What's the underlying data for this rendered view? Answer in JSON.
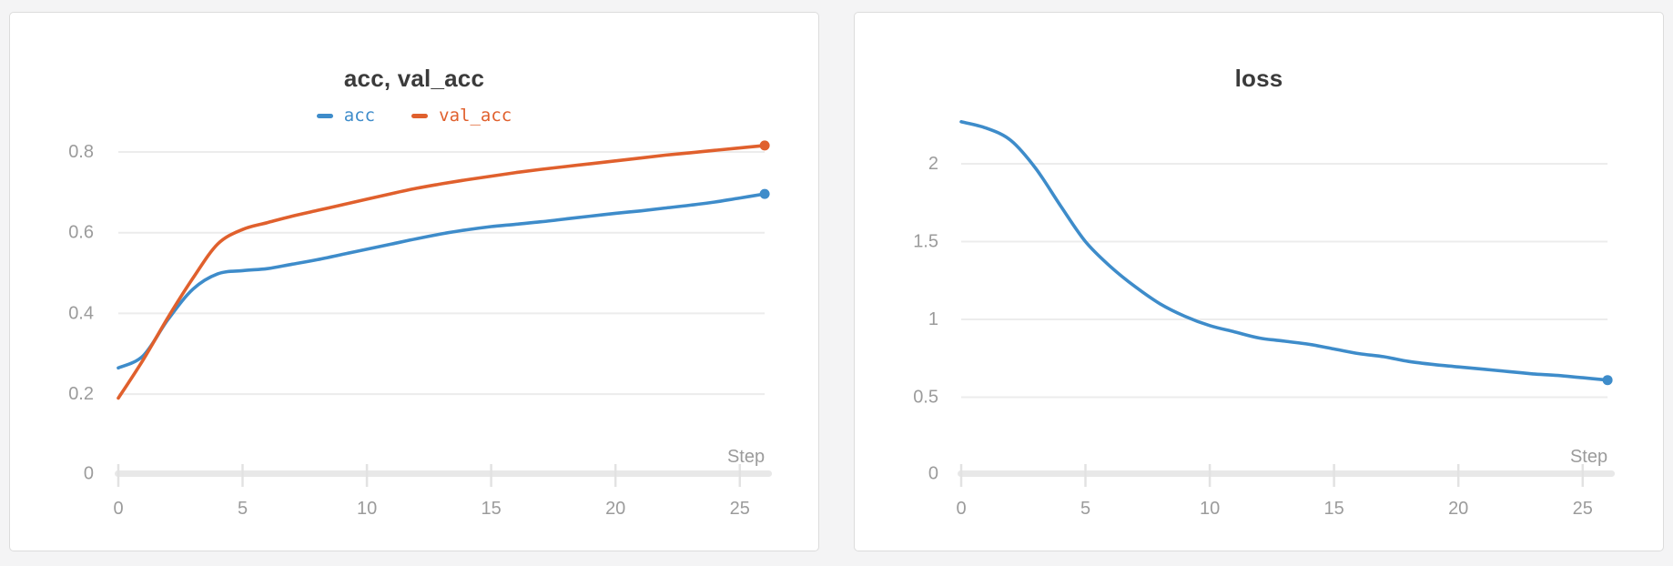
{
  "colors": {
    "accent_blue": "#3e8cca",
    "accent_orange": "#e0602d",
    "gridline": "#ececec",
    "axis_bar": "#e8e8e8",
    "axis_tick": "#e2e2e2",
    "tick_label": "#9b9b9b",
    "title_text": "#3b3b3b",
    "panel_bg": "#ffffff",
    "panel_border": "#dcdcdc",
    "page_bg": "#f4f4f5"
  },
  "chart_data": [
    {
      "type": "line",
      "title": "acc, val_acc",
      "xlabel": "Step",
      "legend_position": "top",
      "grid": "horizontal",
      "x_ticks": [
        0,
        5,
        10,
        15,
        20,
        25
      ],
      "y_ticks": [
        0,
        0.2,
        0.4,
        0.6,
        0.8
      ],
      "xlim": [
        0,
        26
      ],
      "x": [
        0,
        1,
        2,
        3,
        4,
        5,
        6,
        7,
        8,
        9,
        10,
        11,
        12,
        13,
        14,
        15,
        16,
        17,
        18,
        19,
        20,
        21,
        22,
        23,
        24,
        25,
        26
      ],
      "series": [
        {
          "name": "acc",
          "color": "#3e8cca",
          "end_dot": true,
          "values": [
            0.265,
            0.295,
            0.385,
            0.46,
            0.498,
            0.506,
            0.511,
            0.522,
            0.533,
            0.546,
            0.559,
            0.572,
            0.585,
            0.597,
            0.607,
            0.615,
            0.621,
            0.627,
            0.634,
            0.641,
            0.648,
            0.654,
            0.661,
            0.668,
            0.676,
            0.686,
            0.696
          ]
        },
        {
          "name": "val_acc",
          "color": "#e0602d",
          "end_dot": true,
          "values": [
            0.19,
            0.285,
            0.39,
            0.487,
            0.572,
            0.608,
            0.625,
            0.641,
            0.655,
            0.669,
            0.683,
            0.697,
            0.71,
            0.721,
            0.731,
            0.74,
            0.749,
            0.757,
            0.764,
            0.771,
            0.778,
            0.785,
            0.792,
            0.798,
            0.804,
            0.81,
            0.816
          ]
        }
      ]
    },
    {
      "type": "line",
      "title": "loss",
      "xlabel": "Step",
      "legend_position": "none",
      "grid": "horizontal",
      "x_ticks": [
        0,
        5,
        10,
        15,
        20,
        25
      ],
      "y_ticks": [
        0,
        0.5,
        1,
        1.5,
        2
      ],
      "xlim": [
        0,
        26
      ],
      "x": [
        0,
        1,
        2,
        3,
        4,
        5,
        6,
        7,
        8,
        9,
        10,
        11,
        12,
        13,
        14,
        15,
        16,
        17,
        18,
        19,
        20,
        21,
        22,
        23,
        24,
        25,
        26
      ],
      "series": [
        {
          "name": "loss",
          "color": "#3e8cca",
          "end_dot": true,
          "values": [
            2.27,
            2.23,
            2.15,
            1.97,
            1.73,
            1.5,
            1.34,
            1.21,
            1.1,
            1.02,
            0.96,
            0.92,
            0.88,
            0.86,
            0.84,
            0.81,
            0.78,
            0.76,
            0.73,
            0.71,
            0.695,
            0.68,
            0.665,
            0.65,
            0.64,
            0.625,
            0.61
          ]
        }
      ]
    }
  ]
}
